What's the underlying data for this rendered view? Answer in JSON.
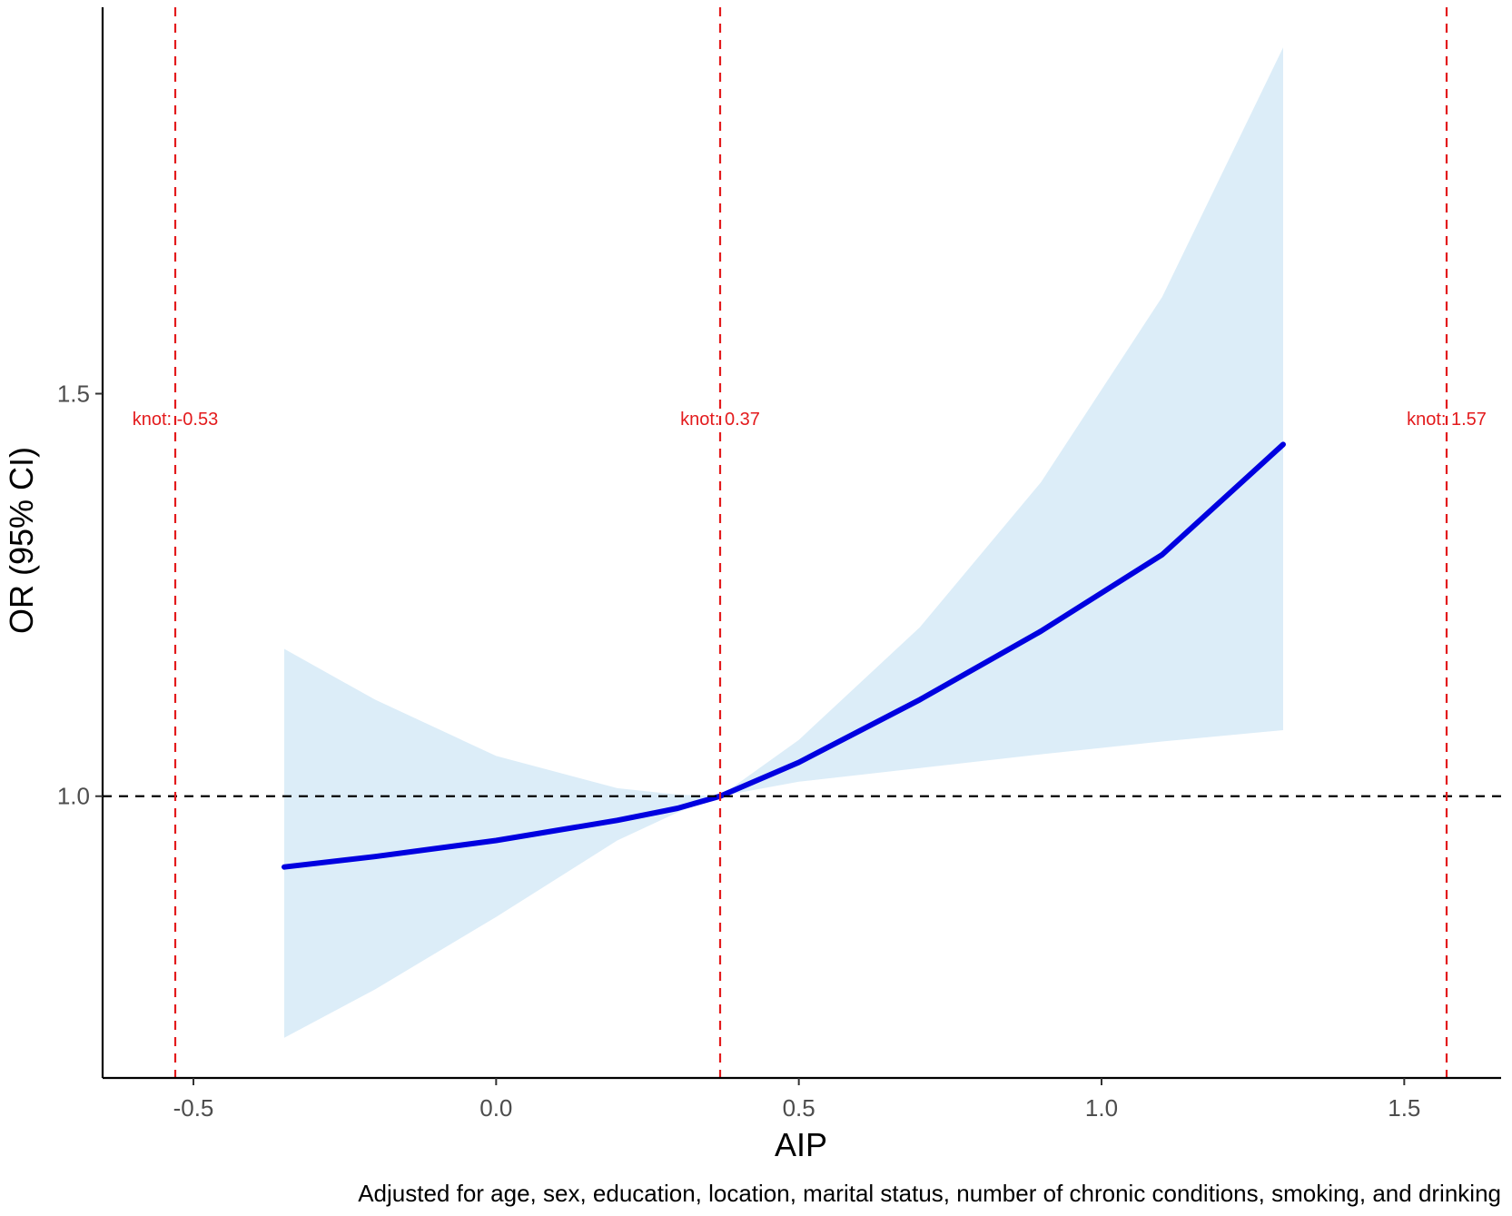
{
  "chart_data": {
    "type": "line",
    "xlabel": "AIP",
    "ylabel": "OR (95% CI)",
    "caption": "Adjusted for age, sex, education, location, marital status, number of chronic conditions, smoking, and drinking",
    "xlim": [
      -0.65,
      1.66
    ],
    "ylim": [
      0.65,
      1.98
    ],
    "x_ticks": [
      -0.5,
      0.0,
      0.5,
      1.0,
      1.5
    ],
    "x_tick_labels": [
      "-0.5",
      "0.0",
      "0.5",
      "1.0",
      "1.5"
    ],
    "y_ticks": [
      1.0,
      1.5
    ],
    "y_tick_labels": [
      "1.0",
      "1.5"
    ],
    "reference_line": 1.0,
    "knots": [
      {
        "x": -0.53,
        "label": "knot: -0.53"
      },
      {
        "x": 0.37,
        "label": "knot: 0.37"
      },
      {
        "x": 1.57,
        "label": "knot: 1.57"
      }
    ],
    "series": [
      {
        "x": [
          -0.35,
          -0.2,
          0.0,
          0.2,
          0.3,
          0.37,
          0.5,
          0.7,
          0.9,
          1.1,
          1.3
        ],
        "y": [
          0.912,
          0.925,
          0.945,
          0.97,
          0.985,
          1.0,
          1.042,
          1.12,
          1.205,
          1.3,
          1.437
        ],
        "lower": [
          0.7,
          0.76,
          0.85,
          0.945,
          0.98,
          1.0,
          1.018,
          1.035,
          1.052,
          1.068,
          1.082
        ],
        "upper": [
          1.183,
          1.12,
          1.05,
          1.01,
          1.002,
          1.0,
          1.07,
          1.21,
          1.39,
          1.62,
          1.93
        ]
      }
    ],
    "colors": {
      "line": "#0000e0",
      "band": "#dcedf8",
      "knot": "#e31a1c",
      "reference": "#000000",
      "axis": "#000000"
    }
  }
}
